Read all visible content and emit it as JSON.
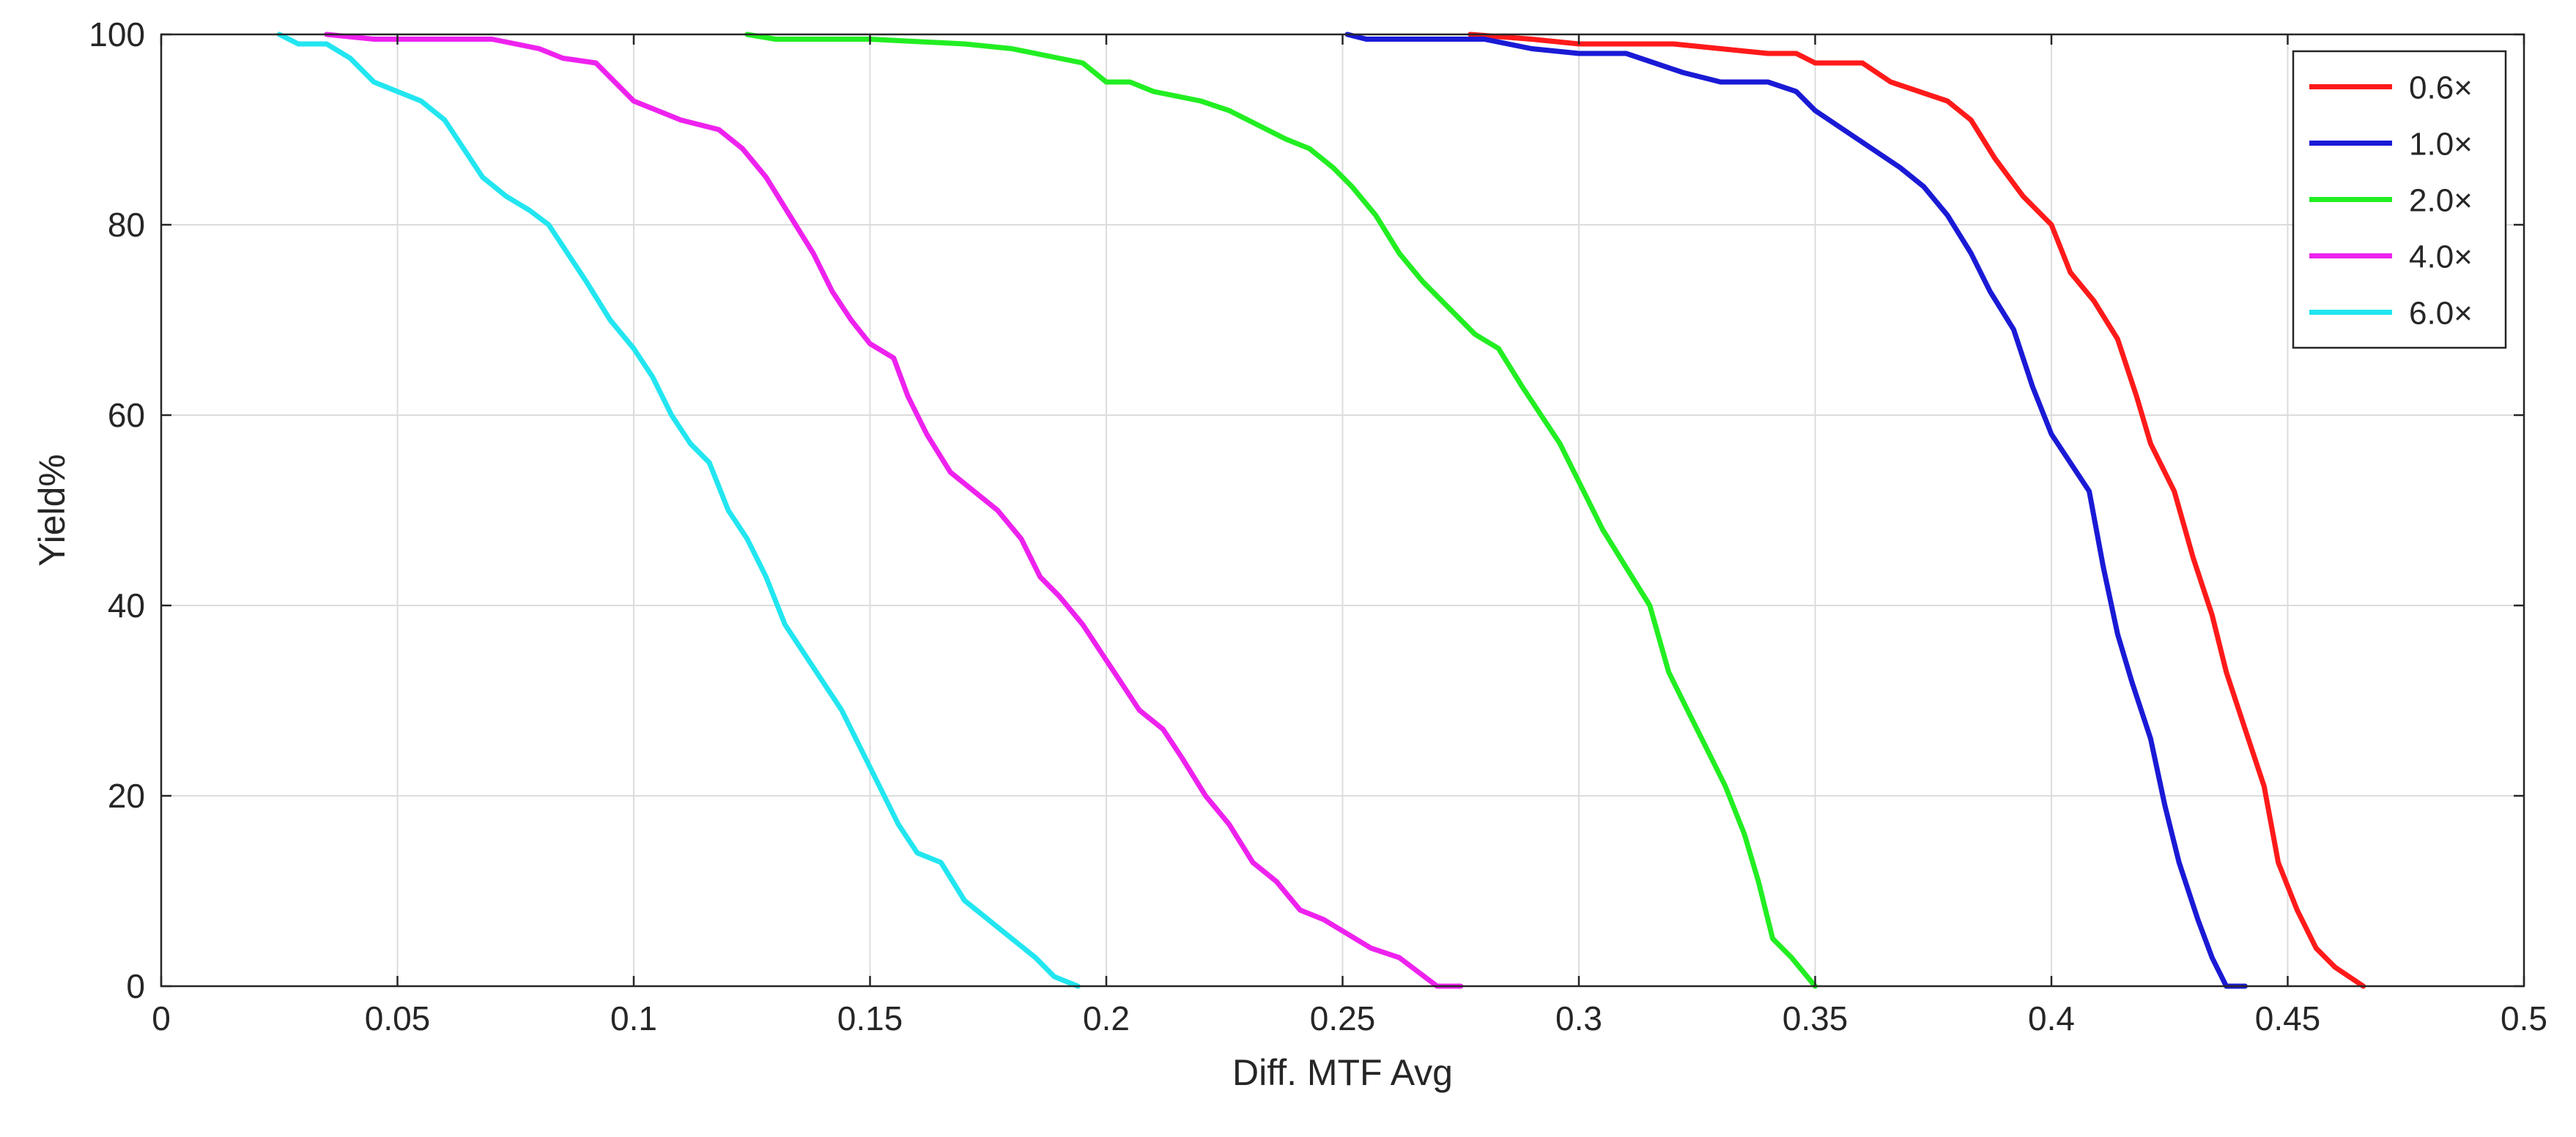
{
  "chart_data": {
    "type": "line",
    "title": "",
    "xlabel": "Diff. MTF Avg",
    "ylabel": "Yield%",
    "xlim": [
      0,
      0.5
    ],
    "ylim": [
      0,
      100
    ],
    "grid": true,
    "legend_position": "top-right",
    "x_ticks": [
      0,
      0.05,
      0.1,
      0.15,
      0.2,
      0.25,
      0.3,
      0.35,
      0.4,
      0.45,
      0.5
    ],
    "x_tick_labels": [
      "0",
      "0.05",
      "0.1",
      "0.15",
      "0.2",
      "0.25",
      "0.3",
      "0.35",
      "0.4",
      "0.45",
      "0.5"
    ],
    "y_ticks": [
      0,
      20,
      40,
      60,
      80,
      100
    ],
    "y_tick_labels": [
      "0",
      "20",
      "40",
      "60",
      "80",
      "100"
    ],
    "series": [
      {
        "name": "0.6×",
        "color": "#ff1a1a",
        "points": [
          [
            0.277,
            100
          ],
          [
            0.29,
            99.5
          ],
          [
            0.3,
            99
          ],
          [
            0.32,
            99
          ],
          [
            0.33,
            98.5
          ],
          [
            0.34,
            98
          ],
          [
            0.346,
            98
          ],
          [
            0.35,
            97
          ],
          [
            0.36,
            97
          ],
          [
            0.366,
            95
          ],
          [
            0.372,
            94
          ],
          [
            0.378,
            93
          ],
          [
            0.383,
            91
          ],
          [
            0.388,
            87
          ],
          [
            0.394,
            83
          ],
          [
            0.4,
            80
          ],
          [
            0.404,
            75
          ],
          [
            0.409,
            72
          ],
          [
            0.414,
            68
          ],
          [
            0.418,
            62
          ],
          [
            0.421,
            57
          ],
          [
            0.426,
            52
          ],
          [
            0.43,
            45
          ],
          [
            0.434,
            39
          ],
          [
            0.437,
            33
          ],
          [
            0.441,
            27
          ],
          [
            0.445,
            21
          ],
          [
            0.448,
            13
          ],
          [
            0.452,
            8
          ],
          [
            0.456,
            4
          ],
          [
            0.46,
            2
          ],
          [
            0.466,
            0
          ]
        ]
      },
      {
        "name": "1.0×",
        "color": "#1a1ad6",
        "points": [
          [
            0.251,
            100
          ],
          [
            0.255,
            99.5
          ],
          [
            0.27,
            99.5
          ],
          [
            0.28,
            99.5
          ],
          [
            0.29,
            98.5
          ],
          [
            0.3,
            98
          ],
          [
            0.31,
            98
          ],
          [
            0.316,
            97
          ],
          [
            0.322,
            96
          ],
          [
            0.33,
            95
          ],
          [
            0.34,
            95
          ],
          [
            0.346,
            94
          ],
          [
            0.35,
            92
          ],
          [
            0.356,
            90
          ],
          [
            0.362,
            88
          ],
          [
            0.368,
            86
          ],
          [
            0.373,
            84
          ],
          [
            0.378,
            81
          ],
          [
            0.383,
            77
          ],
          [
            0.387,
            73
          ],
          [
            0.392,
            69
          ],
          [
            0.396,
            63
          ],
          [
            0.4,
            58
          ],
          [
            0.404,
            55
          ],
          [
            0.408,
            52
          ],
          [
            0.411,
            44
          ],
          [
            0.414,
            37
          ],
          [
            0.417,
            32
          ],
          [
            0.421,
            26
          ],
          [
            0.424,
            19
          ],
          [
            0.427,
            13
          ],
          [
            0.431,
            7
          ],
          [
            0.434,
            3
          ],
          [
            0.437,
            0
          ],
          [
            0.441,
            0
          ]
        ]
      },
      {
        "name": "2.0×",
        "color": "#22ee22",
        "points": [
          [
            0.124,
            100
          ],
          [
            0.13,
            99.5
          ],
          [
            0.15,
            99.5
          ],
          [
            0.17,
            99
          ],
          [
            0.18,
            98.5
          ],
          [
            0.19,
            97.5
          ],
          [
            0.195,
            97
          ],
          [
            0.2,
            95
          ],
          [
            0.205,
            95
          ],
          [
            0.21,
            94
          ],
          [
            0.22,
            93
          ],
          [
            0.226,
            92
          ],
          [
            0.232,
            90.5
          ],
          [
            0.238,
            89
          ],
          [
            0.243,
            88
          ],
          [
            0.248,
            86
          ],
          [
            0.252,
            84
          ],
          [
            0.257,
            81
          ],
          [
            0.262,
            77
          ],
          [
            0.267,
            74
          ],
          [
            0.273,
            71
          ],
          [
            0.278,
            68.5
          ],
          [
            0.283,
            67
          ],
          [
            0.288,
            63
          ],
          [
            0.292,
            60
          ],
          [
            0.296,
            57
          ],
          [
            0.3,
            53
          ],
          [
            0.305,
            48
          ],
          [
            0.31,
            44
          ],
          [
            0.315,
            40
          ],
          [
            0.319,
            33
          ],
          [
            0.323,
            29
          ],
          [
            0.327,
            25
          ],
          [
            0.331,
            21
          ],
          [
            0.335,
            16
          ],
          [
            0.338,
            11
          ],
          [
            0.341,
            5
          ],
          [
            0.345,
            3
          ],
          [
            0.35,
            0
          ]
        ]
      },
      {
        "name": "4.0×",
        "color": "#ee22ee",
        "points": [
          [
            0.035,
            100
          ],
          [
            0.045,
            99.5
          ],
          [
            0.06,
            99.5
          ],
          [
            0.07,
            99.5
          ],
          [
            0.075,
            99
          ],
          [
            0.08,
            98.5
          ],
          [
            0.085,
            97.5
          ],
          [
            0.092,
            97
          ],
          [
            0.096,
            95
          ],
          [
            0.1,
            93
          ],
          [
            0.105,
            92
          ],
          [
            0.11,
            91
          ],
          [
            0.118,
            90
          ],
          [
            0.123,
            88
          ],
          [
            0.128,
            85
          ],
          [
            0.133,
            81
          ],
          [
            0.138,
            77
          ],
          [
            0.142,
            73
          ],
          [
            0.146,
            70
          ],
          [
            0.15,
            67.5
          ],
          [
            0.155,
            66
          ],
          [
            0.158,
            62
          ],
          [
            0.162,
            58
          ],
          [
            0.167,
            54
          ],
          [
            0.172,
            52
          ],
          [
            0.177,
            50
          ],
          [
            0.182,
            47
          ],
          [
            0.186,
            43
          ],
          [
            0.19,
            41
          ],
          [
            0.195,
            38
          ],
          [
            0.199,
            35
          ],
          [
            0.203,
            32
          ],
          [
            0.207,
            29
          ],
          [
            0.212,
            27
          ],
          [
            0.216,
            24
          ],
          [
            0.221,
            20
          ],
          [
            0.226,
            17
          ],
          [
            0.231,
            13
          ],
          [
            0.236,
            11
          ],
          [
            0.241,
            8
          ],
          [
            0.246,
            7
          ],
          [
            0.251,
            5.5
          ],
          [
            0.256,
            4
          ],
          [
            0.262,
            3
          ],
          [
            0.266,
            1.5
          ],
          [
            0.27,
            0
          ],
          [
            0.275,
            0
          ]
        ]
      },
      {
        "name": "6.0×",
        "color": "#22e6f0",
        "points": [
          [
            0.025,
            100
          ],
          [
            0.029,
            99
          ],
          [
            0.035,
            99
          ],
          [
            0.04,
            97.5
          ],
          [
            0.045,
            95
          ],
          [
            0.05,
            94
          ],
          [
            0.055,
            93
          ],
          [
            0.06,
            91
          ],
          [
            0.064,
            88
          ],
          [
            0.068,
            85
          ],
          [
            0.073,
            83
          ],
          [
            0.078,
            81.5
          ],
          [
            0.082,
            80
          ],
          [
            0.086,
            77
          ],
          [
            0.09,
            74
          ],
          [
            0.095,
            70
          ],
          [
            0.1,
            67
          ],
          [
            0.104,
            64
          ],
          [
            0.108,
            60
          ],
          [
            0.112,
            57
          ],
          [
            0.116,
            55
          ],
          [
            0.12,
            50
          ],
          [
            0.124,
            47
          ],
          [
            0.128,
            43
          ],
          [
            0.132,
            38
          ],
          [
            0.136,
            35
          ],
          [
            0.14,
            32
          ],
          [
            0.144,
            29
          ],
          [
            0.148,
            25
          ],
          [
            0.152,
            21
          ],
          [
            0.156,
            17
          ],
          [
            0.16,
            14
          ],
          [
            0.165,
            13
          ],
          [
            0.17,
            9
          ],
          [
            0.175,
            7
          ],
          [
            0.18,
            5
          ],
          [
            0.185,
            3
          ],
          [
            0.189,
            1
          ],
          [
            0.194,
            0
          ]
        ]
      }
    ]
  }
}
